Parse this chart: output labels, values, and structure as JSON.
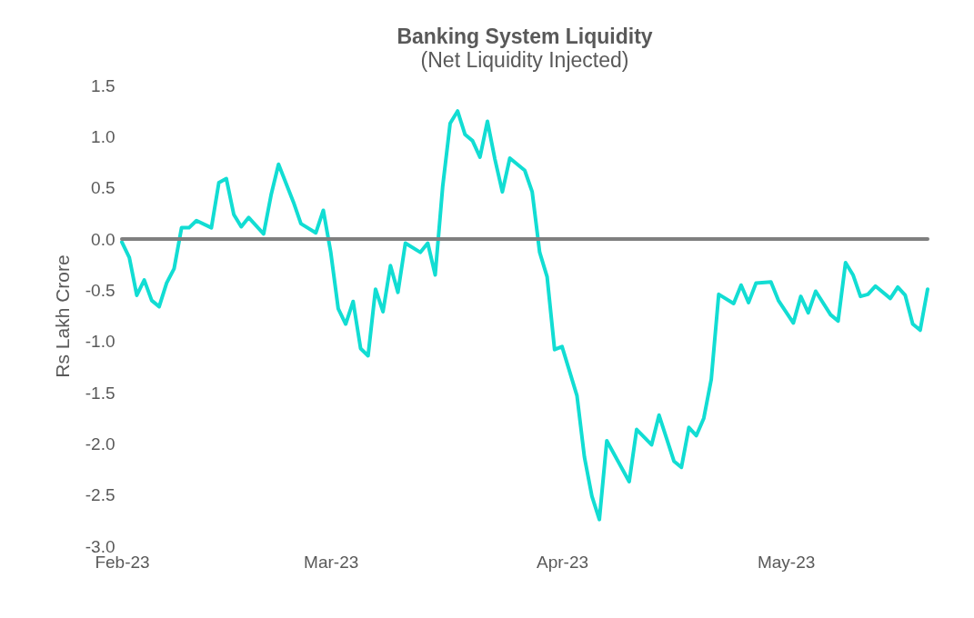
{
  "chart_data": {
    "type": "line",
    "title": "Banking System Liquidity",
    "subtitle": "(Net Liquidity Injected)",
    "ylabel": "Rs Lakh Crore",
    "x": [
      "2023-02-01",
      "2023-02-02",
      "2023-02-03",
      "2023-02-04",
      "2023-02-05",
      "2023-02-06",
      "2023-02-07",
      "2023-02-08",
      "2023-02-09",
      "2023-02-10",
      "2023-02-11",
      "2023-02-13",
      "2023-02-14",
      "2023-02-15",
      "2023-02-16",
      "2023-02-17",
      "2023-02-18",
      "2023-02-20",
      "2023-02-21",
      "2023-02-22",
      "2023-02-24",
      "2023-02-25",
      "2023-02-27",
      "2023-02-28",
      "2023-03-01",
      "2023-03-02",
      "2023-03-03",
      "2023-03-04",
      "2023-03-05",
      "2023-03-06",
      "2023-03-07",
      "2023-03-08",
      "2023-03-09",
      "2023-03-10",
      "2023-03-11",
      "2023-03-13",
      "2023-03-14",
      "2023-03-15",
      "2023-03-16",
      "2023-03-17",
      "2023-03-18",
      "2023-03-19",
      "2023-03-20",
      "2023-03-21",
      "2023-03-22",
      "2023-03-23",
      "2023-03-24",
      "2023-03-25",
      "2023-03-27",
      "2023-03-28",
      "2023-03-29",
      "2023-03-30",
      "2023-03-31",
      "2023-04-01",
      "2023-04-03",
      "2023-04-04",
      "2023-04-05",
      "2023-04-06",
      "2023-04-07",
      "2023-04-10",
      "2023-04-11",
      "2023-04-13",
      "2023-04-14",
      "2023-04-16",
      "2023-04-17",
      "2023-04-18",
      "2023-04-19",
      "2023-04-20",
      "2023-04-21",
      "2023-04-22",
      "2023-04-24",
      "2023-04-25",
      "2023-04-26",
      "2023-04-27",
      "2023-04-29",
      "2023-04-30",
      "2023-05-02",
      "2023-05-03",
      "2023-05-04",
      "2023-05-05",
      "2023-05-07",
      "2023-05-08",
      "2023-05-09",
      "2023-05-10",
      "2023-05-11",
      "2023-05-12",
      "2023-05-13",
      "2023-05-15",
      "2023-05-16",
      "2023-05-17",
      "2023-05-18",
      "2023-05-19",
      "2023-05-20"
    ],
    "series": [
      {
        "color": "#12ddd3",
        "values": [
          -0.03,
          -0.18,
          -0.55,
          -0.4,
          -0.6,
          -0.66,
          -0.43,
          -0.29,
          0.11,
          0.11,
          0.18,
          0.11,
          0.55,
          0.59,
          0.24,
          0.12,
          0.21,
          0.05,
          0.43,
          0.73,
          0.36,
          0.15,
          0.06,
          0.28,
          -0.13,
          -0.68,
          -0.83,
          -0.61,
          -1.07,
          -1.14,
          -0.49,
          -0.71,
          -0.26,
          -0.52,
          -0.04,
          -0.13,
          -0.04,
          -0.35,
          0.51,
          1.13,
          1.25,
          1.02,
          0.96,
          0.8,
          1.15,
          0.78,
          0.46,
          0.79,
          0.67,
          0.46,
          -0.13,
          -0.37,
          -1.08,
          -1.05,
          -1.53,
          -2.13,
          -2.51,
          -2.74,
          -1.97,
          -2.37,
          -1.86,
          -2.01,
          -1.72,
          -2.17,
          -2.23,
          -1.84,
          -1.92,
          -1.75,
          -1.37,
          -0.54,
          -0.63,
          -0.45,
          -0.62,
          -0.43,
          -0.42,
          -0.6,
          -0.82,
          -0.56,
          -0.72,
          -0.51,
          -0.74,
          -0.8,
          -0.23,
          -0.35,
          -0.56,
          -0.54,
          -0.46,
          -0.58,
          -0.47,
          -0.55,
          -0.83,
          -0.89,
          -0.49
        ]
      }
    ],
    "xlim": [
      "2023-02-01",
      "2023-05-20"
    ],
    "xticks": [
      {
        "value": "2023-02-01",
        "label": "Feb-23"
      },
      {
        "value": "2023-03-01",
        "label": "Mar-23"
      },
      {
        "value": "2023-04-01",
        "label": "Apr-23"
      },
      {
        "value": "2023-05-01",
        "label": "May-23"
      }
    ],
    "ylim": [
      -3.0,
      1.5
    ],
    "yticks": [
      {
        "value": -3.0,
        "label": "-3.0"
      },
      {
        "value": -2.5,
        "label": "-2.5"
      },
      {
        "value": -2.0,
        "label": "-2.0"
      },
      {
        "value": -1.5,
        "label": "-1.5"
      },
      {
        "value": -1.0,
        "label": "-1.0"
      },
      {
        "value": -0.5,
        "label": "-0.5"
      },
      {
        "value": 0.0,
        "label": "0.0"
      },
      {
        "value": 0.5,
        "label": "0.5"
      },
      {
        "value": 1.0,
        "label": "1.0"
      },
      {
        "value": 1.5,
        "label": "1.5"
      }
    ],
    "ref_lines": [
      {
        "axis": "y",
        "value": 0,
        "color": "#7f7f7f"
      }
    ],
    "grid": false,
    "marker": "none",
    "line_style": "solid"
  }
}
